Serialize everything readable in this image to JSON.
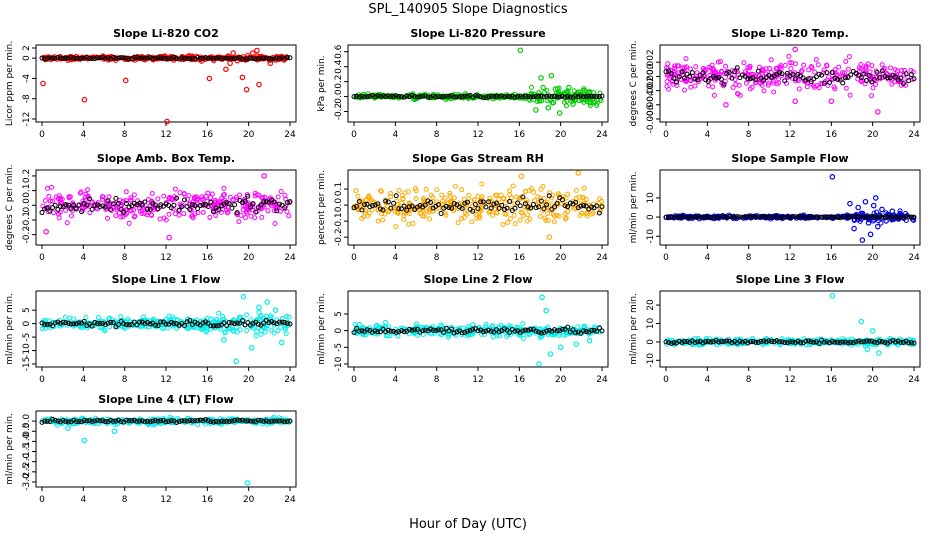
{
  "page": {
    "title": "SPL_140905  Slope Diagnostics",
    "xlabel": "Hour of Day (UTC)"
  },
  "chart_data": [
    {
      "type": "scatter",
      "title": "Slope Li-820 CO2",
      "ylabel": "Licor ppm per min.",
      "xlim": [
        0,
        24
      ],
      "ylim": [
        -12,
        2
      ],
      "xticks": [
        0,
        4,
        8,
        12,
        16,
        20,
        24
      ],
      "yticks": [
        -12,
        -8,
        -4,
        0,
        2
      ],
      "ytick_labels": [
        "-12",
        "-8",
        "-4",
        "0",
        "2"
      ],
      "noise": 0.3,
      "color": "#ff0000",
      "outliers": [
        [
          0.1,
          -5.0
        ],
        [
          4.1,
          -8.2
        ],
        [
          8.1,
          -4.4
        ],
        [
          12.1,
          -12.5
        ],
        [
          16.2,
          -4.0
        ],
        [
          17.8,
          -2.2
        ],
        [
          18.2,
          -1.0
        ],
        [
          18.9,
          -0.5
        ],
        [
          19.4,
          -3.8
        ],
        [
          19.8,
          -6.2
        ],
        [
          20.4,
          1.0
        ],
        [
          21.0,
          -5.2
        ],
        [
          22.1,
          -1.0
        ],
        [
          18.5,
          1.0
        ],
        [
          20.8,
          1.5
        ]
      ]
    },
    {
      "type": "scatter",
      "title": "Slope Li-820 Pressure",
      "ylabel": "kPa per min.",
      "xlim": [
        0,
        24
      ],
      "ylim": [
        -0.3,
        0.65
      ],
      "xticks": [
        0,
        4,
        8,
        12,
        16,
        20,
        24
      ],
      "yticks": [
        -0.2,
        0.0,
        0.2,
        0.4,
        0.6
      ],
      "ytick_labels": [
        "-0.2",
        "0.0",
        "0.2",
        "0.4",
        "0.6"
      ],
      "noise": 0.02,
      "color": "#00cc00",
      "outliers": [
        [
          16.1,
          0.62
        ],
        [
          17.6,
          -0.18
        ],
        [
          18.1,
          0.25
        ],
        [
          18.3,
          0.12
        ],
        [
          18.8,
          -0.15
        ],
        [
          19.1,
          0.28
        ],
        [
          19.5,
          0.1
        ],
        [
          19.9,
          -0.22
        ],
        [
          20.4,
          0.05
        ],
        [
          20.8,
          0.12
        ],
        [
          21.2,
          -0.1
        ],
        [
          21.8,
          -0.05
        ],
        [
          22.3,
          0.08
        ],
        [
          17.9,
          0.05
        ],
        [
          19.3,
          -0.08
        ]
      ]
    },
    {
      "type": "scatter",
      "title": "Slope Li-820 Temp.",
      "ylabel": "degrees C per min.",
      "xlim": [
        0,
        24
      ],
      "ylim": [
        -0.006,
        0.004
      ],
      "xticks": [
        0,
        4,
        8,
        12,
        16,
        20,
        24
      ],
      "yticks": [
        -0.006,
        -0.004,
        -0.002,
        0.0,
        0.002
      ],
      "ytick_labels": [
        "-0.006",
        "-0.004",
        "-0.002",
        "0.000",
        "0.002"
      ],
      "noise": 0.0015,
      "color": "#ff00ff",
      "outliers": [
        [
          12.5,
          0.0038
        ],
        [
          12.5,
          -0.0035
        ],
        [
          16.0,
          -0.0035
        ],
        [
          5.8,
          -0.004
        ],
        [
          20.5,
          -0.005
        ]
      ]
    },
    {
      "type": "scatter",
      "title": "Slope Amb. Box Temp.",
      "ylabel": "degrees C per min.",
      "xlim": [
        0,
        24
      ],
      "ylim": [
        -0.25,
        0.22
      ],
      "xticks": [
        0,
        4,
        8,
        12,
        16,
        20,
        24
      ],
      "yticks": [
        -0.2,
        -0.1,
        0.0,
        0.1,
        0.2
      ],
      "ytick_labels": [
        "-0.2",
        "-0.1",
        "0.0",
        "0.1",
        "0.2"
      ],
      "noise": 0.07,
      "color": "#ff00ff",
      "outliers": [
        [
          12.3,
          -0.22
        ],
        [
          0.4,
          -0.18
        ],
        [
          21.5,
          0.2
        ]
      ]
    },
    {
      "type": "scatter",
      "title": "Slope Gas Stream RH",
      "ylabel": "percent per min.",
      "xlim": [
        0,
        24
      ],
      "ylim": [
        -0.23,
        0.2
      ],
      "xticks": [
        0,
        4,
        8,
        12,
        16,
        20,
        24
      ],
      "yticks": [
        -0.2,
        -0.1,
        0.0,
        0.1
      ],
      "ytick_labels": [
        "-0.2",
        "-0.1",
        "0.0",
        "0.1"
      ],
      "noise": 0.07,
      "color": "#ffaa00",
      "outliers": [
        [
          16.2,
          0.18
        ],
        [
          21.7,
          0.2
        ],
        [
          18.9,
          -0.2
        ]
      ]
    },
    {
      "type": "scatter",
      "title": "Slope Sample Flow",
      "ylabel": "ml/min per min.",
      "xlim": [
        0,
        24
      ],
      "ylim": [
        -13,
        23
      ],
      "xticks": [
        0,
        4,
        8,
        12,
        16,
        20,
        24
      ],
      "yticks": [
        -10,
        0,
        10
      ],
      "ytick_labels": [
        "-10",
        "0",
        "10"
      ],
      "noise": 0.6,
      "color": "#0000ee",
      "outliers": [
        [
          16.1,
          21
        ],
        [
          18.2,
          -6
        ],
        [
          18.6,
          5
        ],
        [
          19.0,
          -12
        ],
        [
          19.3,
          8
        ],
        [
          19.6,
          -3
        ],
        [
          20.1,
          6
        ],
        [
          20.5,
          -5
        ],
        [
          20.9,
          4
        ],
        [
          21.3,
          -2
        ],
        [
          21.9,
          3
        ],
        [
          22.5,
          -1
        ],
        [
          17.8,
          7
        ],
        [
          19.8,
          -9
        ],
        [
          20.3,
          10
        ]
      ]
    },
    {
      "type": "scatter",
      "title": "Slope Line 1 Flow",
      "ylabel": "ml/min per min.",
      "xlim": [
        0,
        24
      ],
      "ylim": [
        -15,
        11
      ],
      "xticks": [
        0,
        4,
        8,
        12,
        16,
        20,
        24
      ],
      "yticks": [
        -15,
        -10,
        -5,
        0,
        5
      ],
      "ytick_labels": [
        "-15",
        "-10",
        "-5",
        "0",
        "5"
      ],
      "noise": 1.6,
      "color": "#00eeee",
      "outliers": [
        [
          18.8,
          -14
        ],
        [
          19.5,
          10
        ],
        [
          20.3,
          -9
        ],
        [
          21.0,
          6
        ],
        [
          21.8,
          8
        ],
        [
          22.6,
          5
        ],
        [
          17.6,
          -6
        ],
        [
          23.2,
          -7
        ]
      ]
    },
    {
      "type": "scatter",
      "title": "Slope Line 2 Flow",
      "ylabel": "ml/min per min.",
      "xlim": [
        0,
        24
      ],
      "ylim": [
        -10,
        11
      ],
      "xticks": [
        0,
        4,
        8,
        12,
        16,
        20,
        24
      ],
      "yticks": [
        -10,
        -5,
        0,
        5
      ],
      "ytick_labels": [
        "-10",
        "-5",
        "0",
        "5"
      ],
      "noise": 1.2,
      "color": "#00eeee",
      "outliers": [
        [
          18.2,
          10
        ],
        [
          17.9,
          -10
        ],
        [
          19.0,
          -7
        ],
        [
          18.6,
          6
        ],
        [
          20.0,
          -5
        ],
        [
          21.5,
          -4
        ],
        [
          22.8,
          -3
        ]
      ]
    },
    {
      "type": "scatter",
      "title": "Slope Line 3 Flow",
      "ylabel": "ml/min per min.",
      "xlim": [
        0,
        24
      ],
      "ylim": [
        -12,
        26
      ],
      "xticks": [
        0,
        4,
        8,
        12,
        16,
        20,
        24
      ],
      "yticks": [
        -10,
        0,
        10,
        20
      ],
      "ytick_labels": [
        "-10",
        "0",
        "10",
        "20"
      ],
      "noise": 1.2,
      "color": "#00eeee",
      "outliers": [
        [
          16.1,
          25
        ],
        [
          18.9,
          11
        ],
        [
          19.5,
          -4
        ],
        [
          20.6,
          -6
        ],
        [
          20.0,
          6
        ],
        [
          19.3,
          -2
        ]
      ]
    },
    {
      "type": "scatter",
      "title": "Slope Line 4 (LT) Flow",
      "ylabel": "ml/min per min.",
      "xlim": [
        0,
        24
      ],
      "ylim": [
        -3.1,
        0.35
      ],
      "xticks": [
        0,
        4,
        8,
        12,
        16,
        20,
        24
      ],
      "yticks": [
        -3.0,
        -2.5,
        -2.0,
        -1.5,
        -1.0,
        -0.5,
        0.0
      ],
      "ytick_labels": [
        "-3.0",
        "-2.5",
        "-2.0",
        "-1.5",
        "-1.0",
        "-0.5",
        "0.0"
      ],
      "noise": 0.1,
      "color": "#00eeee",
      "outliers": [
        [
          4.1,
          -0.95
        ],
        [
          19.9,
          -3.05
        ],
        [
          7.0,
          -0.5
        ],
        [
          2.5,
          -0.35
        ]
      ]
    }
  ]
}
